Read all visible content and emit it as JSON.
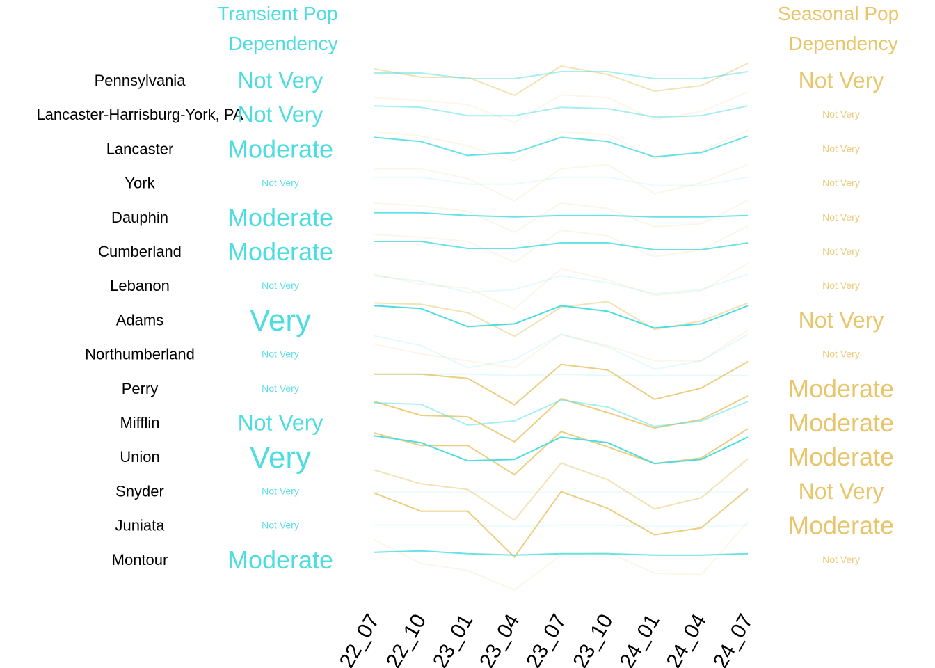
{
  "colors": {
    "transient": "#4DDDE1",
    "seasonal": "#E8C56A",
    "region_label": "#000000",
    "axis_label": "#000000"
  },
  "headers": {
    "transient": [
      "Transient Pop",
      "Dependency"
    ],
    "seasonal": [
      "Seasonal Pop",
      "Dependency"
    ]
  },
  "chart_data": {
    "type": "line",
    "title": "",
    "x": [
      "22_07",
      "22_10",
      "23_01",
      "23_04",
      "23_07",
      "23_10",
      "24_01",
      "24_04",
      "24_07"
    ],
    "xlabel": "",
    "ylabel": "",
    "grid": false,
    "legend": "none",
    "note": "Small multiples: one row per region; each row shows an indexed transient-population line and an indexed seasonal-population line. Values are relative (row-local index, approximate).",
    "regions": [
      {
        "name": "Pennsylvania",
        "transient_level": "Not Very",
        "seasonal_level": "Not Very",
        "transient": [
          5,
          5,
          1,
          1,
          6,
          6,
          1,
          1,
          6
        ],
        "seasonal": [
          8,
          2,
          2,
          -11,
          10,
          4,
          -8,
          -4,
          12
        ]
      },
      {
        "name": "Lancaster-Harrisburg-York, PA",
        "transient_level": "Not Very",
        "seasonal_level": "Not Very",
        "transient": [
          6,
          5,
          -1,
          -1,
          5,
          4,
          -2,
          -1,
          6
        ],
        "seasonal": [
          12,
          10,
          7,
          -6,
          14,
          12,
          -4,
          2,
          16
        ]
      },
      {
        "name": "Lancaster",
        "transient_level": "Moderate",
        "seasonal_level": "Not Very",
        "transient": [
          8,
          5,
          -5,
          -3,
          8,
          5,
          -6,
          -3,
          9
        ],
        "seasonal": [
          12,
          9,
          2,
          -9,
          12,
          10,
          -7,
          -2,
          13
        ]
      },
      {
        "name": "York",
        "transient_level": "Not Very",
        "seasonal_level": "Not Very",
        "transient": [
          4,
          4,
          -1,
          -1,
          4,
          4,
          -2,
          -2,
          4
        ],
        "seasonal": [
          10,
          10,
          3,
          -13,
          10,
          13,
          -8,
          0,
          13
        ]
      },
      {
        "name": "Dauphin",
        "transient_level": "Moderate",
        "seasonal_level": "Not Very",
        "transient": [
          3,
          3,
          1,
          0,
          1,
          1,
          0,
          0,
          1
        ],
        "seasonal": [
          10,
          8,
          4,
          -11,
          10,
          6,
          -7,
          -5,
          12
        ]
      },
      {
        "name": "Cumberland",
        "transient_level": "Moderate",
        "seasonal_level": "Not Very",
        "transient": [
          7,
          7,
          2,
          2,
          6,
          6,
          1,
          1,
          6
        ],
        "seasonal": [
          12,
          10,
          7,
          -8,
          15,
          11,
          -4,
          1,
          18
        ]
      },
      {
        "name": "Lebanon",
        "transient_level": "Not Very",
        "seasonal_level": "Not Very",
        "transient": [
          7,
          3,
          -5,
          -3,
          7,
          2,
          -6,
          -3,
          8
        ],
        "seasonal": [
          8,
          1,
          -2,
          -17,
          12,
          4,
          -7,
          -4,
          16
        ]
      },
      {
        "name": "Adams",
        "transient_level": "Very",
        "seasonal_level": "Not Very",
        "transient": [
          10,
          8,
          -5,
          -3,
          10,
          6,
          -6,
          -3,
          10
        ],
        "seasonal": [
          12,
          11,
          5,
          -12,
          9,
          13,
          -7,
          -1,
          12
        ]
      },
      {
        "name": "Northumberland",
        "transient_level": "Not Very",
        "seasonal_level": "Not Very",
        "transient": [
          13,
          6,
          -10,
          -4,
          14,
          5,
          -11,
          -5,
          14
        ],
        "seasonal": [
          7,
          0,
          -5,
          -10,
          14,
          6,
          -5,
          -5,
          17
        ]
      },
      {
        "name": "Perry",
        "transient_level": "Not Very",
        "seasonal_level": "Moderate",
        "transient": [
          10,
          10,
          10,
          9,
          10,
          9,
          9,
          9,
          9
        ],
        "seasonal": [
          10,
          10,
          7,
          -12,
          17,
          13,
          -8,
          0,
          19
        ]
      },
      {
        "name": "Mifflin",
        "transient_level": "Not Very",
        "seasonal_level": "Moderate",
        "transient": [
          14,
          13,
          -2,
          1,
          16,
          11,
          -3,
          1,
          15
        ],
        "seasonal": [
          15,
          5,
          4,
          -14,
          17,
          7,
          -4,
          2,
          19
        ]
      },
      {
        "name": "Union",
        "transient_level": "Very",
        "seasonal_level": "Moderate",
        "transient": [
          15,
          10,
          -3,
          -2,
          14,
          10,
          -5,
          -2,
          14
        ],
        "seasonal": [
          17,
          8,
          8,
          -13,
          18,
          7,
          -5,
          -1,
          20
        ]
      },
      {
        "name": "Snyder",
        "transient_level": "Not Very",
        "seasonal_level": "Not Very",
        "transient": [
          -1,
          -1,
          -1,
          -1,
          -1,
          -1,
          -1,
          -1,
          -1
        ],
        "seasonal": [
          15,
          5,
          1,
          -21,
          20,
          8,
          -13,
          -5,
          23
        ]
      },
      {
        "name": "Juniata",
        "transient_level": "Not Very",
        "seasonal_level": "Moderate",
        "transient": [
          0,
          0,
          0,
          -1,
          0,
          0,
          -1,
          -1,
          0
        ],
        "seasonal": [
          23,
          10,
          10,
          -23,
          24,
          12,
          -7,
          -2,
          26
        ]
      },
      {
        "name": "Montour",
        "transient_level": "Moderate",
        "seasonal_level": "Not Very",
        "transient": [
          5,
          6,
          4,
          3,
          4,
          4,
          3,
          3,
          4
        ],
        "seasonal": [
          14,
          -3,
          -8,
          -22,
          3,
          5,
          -10,
          -11,
          27
        ]
      }
    ]
  },
  "styles": {
    "regions": [
      {
        "t_level": 1,
        "s_level": 1,
        "t_alpha": 0.5,
        "s_alpha": 0.5
      },
      {
        "t_level": 1,
        "s_level": 0,
        "t_alpha": 0.5,
        "s_alpha": 0.15
      },
      {
        "t_level": 2,
        "s_level": 0,
        "t_alpha": 0.85,
        "s_alpha": 0.15
      },
      {
        "t_level": 0,
        "s_level": 0,
        "t_alpha": 0.12,
        "s_alpha": 0.15
      },
      {
        "t_level": 2,
        "s_level": 0,
        "t_alpha": 0.85,
        "s_alpha": 0.15
      },
      {
        "t_level": 2,
        "s_level": 0,
        "t_alpha": 0.85,
        "s_alpha": 0.15
      },
      {
        "t_level": 0,
        "s_level": 0,
        "t_alpha": 0.15,
        "s_alpha": 0.15
      },
      {
        "t_level": 3,
        "s_level": 1,
        "t_alpha": 1.0,
        "s_alpha": 0.5
      },
      {
        "t_level": 0,
        "s_level": 0,
        "t_alpha": 0.15,
        "s_alpha": 0.15
      },
      {
        "t_level": 0,
        "s_level": 2,
        "t_alpha": 0.15,
        "s_alpha": 0.85
      },
      {
        "t_level": 1,
        "s_level": 2,
        "t_alpha": 0.5,
        "s_alpha": 0.85
      },
      {
        "t_level": 3,
        "s_level": 2,
        "t_alpha": 1.0,
        "s_alpha": 0.85
      },
      {
        "t_level": 0,
        "s_level": 1,
        "t_alpha": 0.12,
        "s_alpha": 0.5
      },
      {
        "t_level": 0,
        "s_level": 2,
        "t_alpha": 0.12,
        "s_alpha": 0.85
      },
      {
        "t_level": 2,
        "s_level": 0,
        "t_alpha": 0.85,
        "s_alpha": 0.15
      }
    ]
  }
}
